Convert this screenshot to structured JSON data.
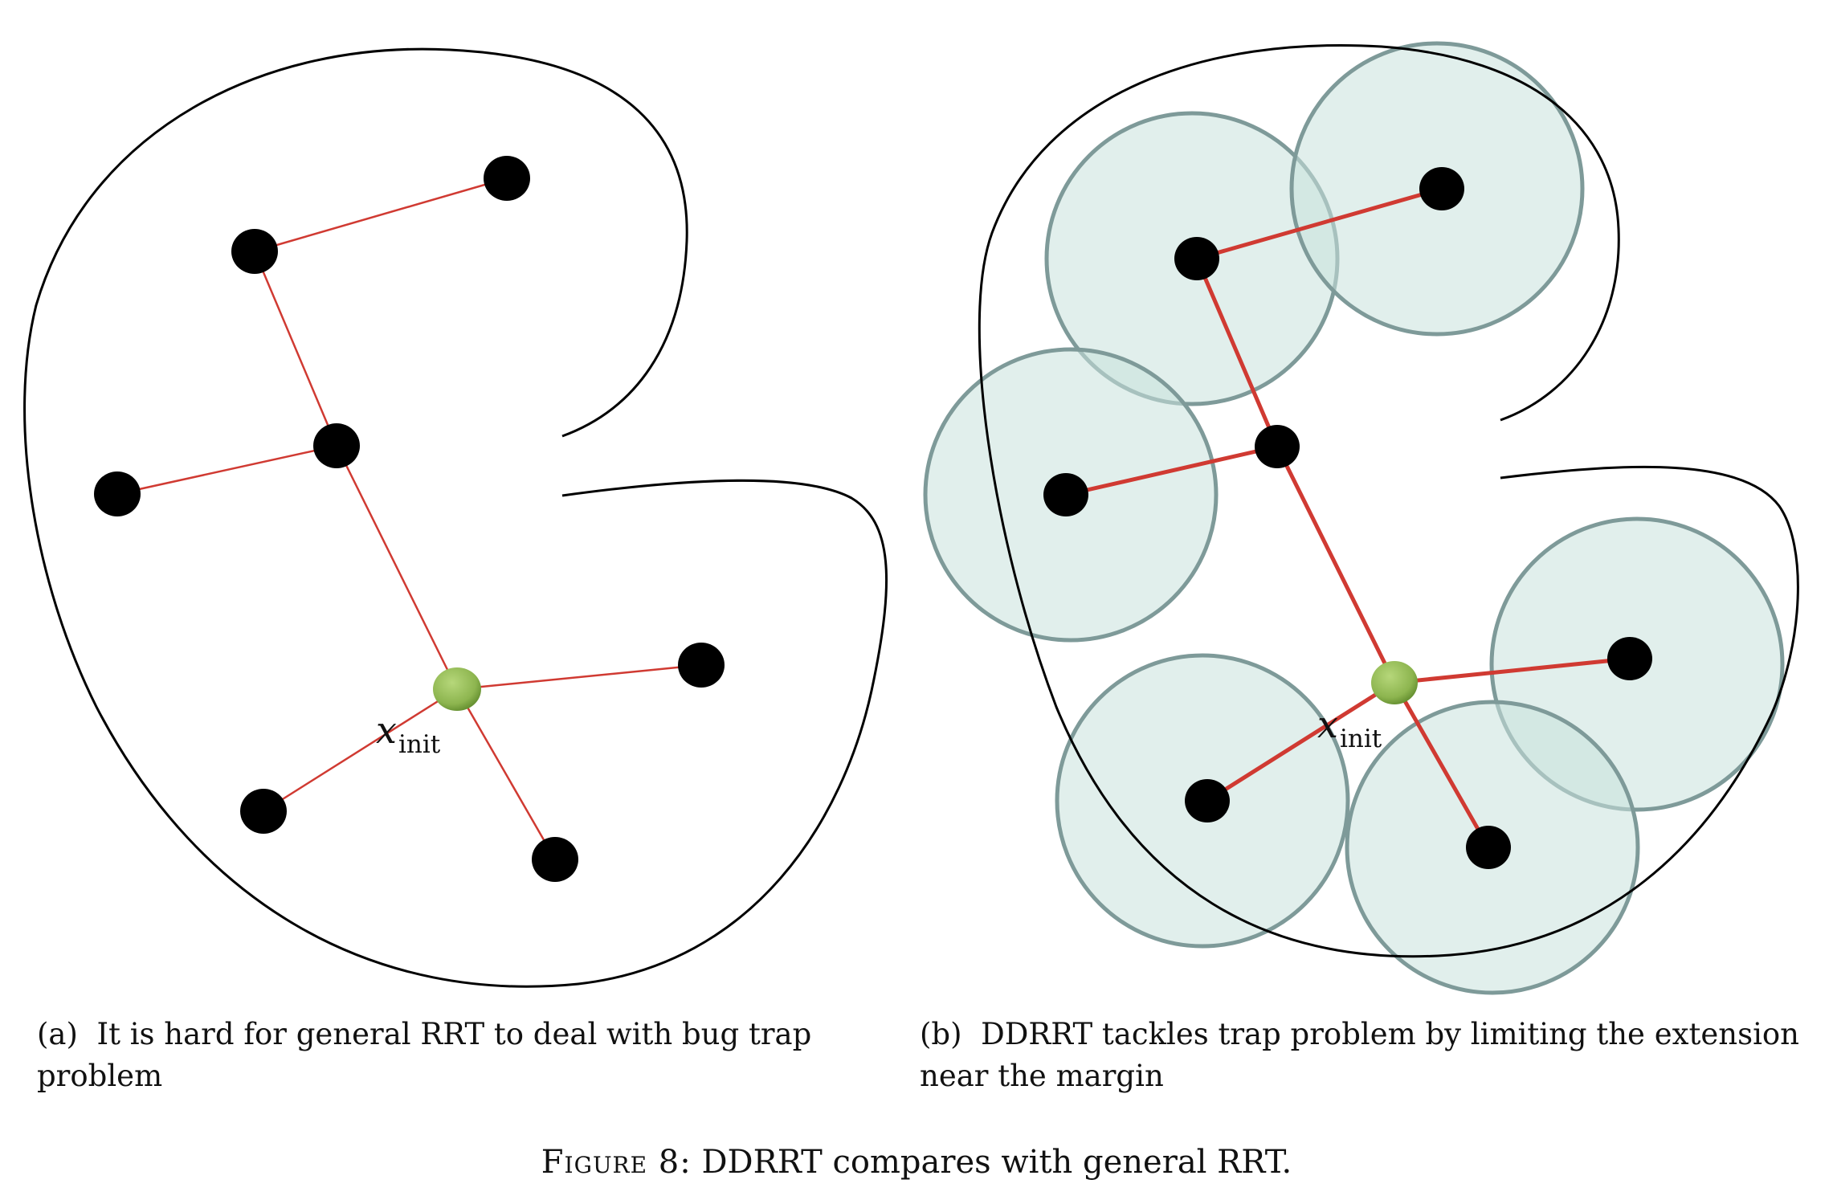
{
  "panel_a": {
    "caption_marker": "(a)",
    "caption": "It is hard for general RRT to deal with bug trap problem",
    "init_label_symbol": "x",
    "init_label_subscript": "init"
  },
  "panel_b": {
    "caption_marker": "(b)",
    "caption": "DDRRT tackles trap problem by limiting the extension near the margin",
    "init_label_symbol": "x",
    "init_label_subscript": "init"
  },
  "figure": {
    "prefix": "Figure 8:",
    "caption": "DDRRT compares with general RRT."
  },
  "colors": {
    "edge": "#d03a32",
    "node": "#000000",
    "init_node": "#8db54f",
    "margin_circle_fill": "#c9e1dc",
    "margin_circle_stroke": "#7e9a99",
    "boundary": "#000000"
  }
}
